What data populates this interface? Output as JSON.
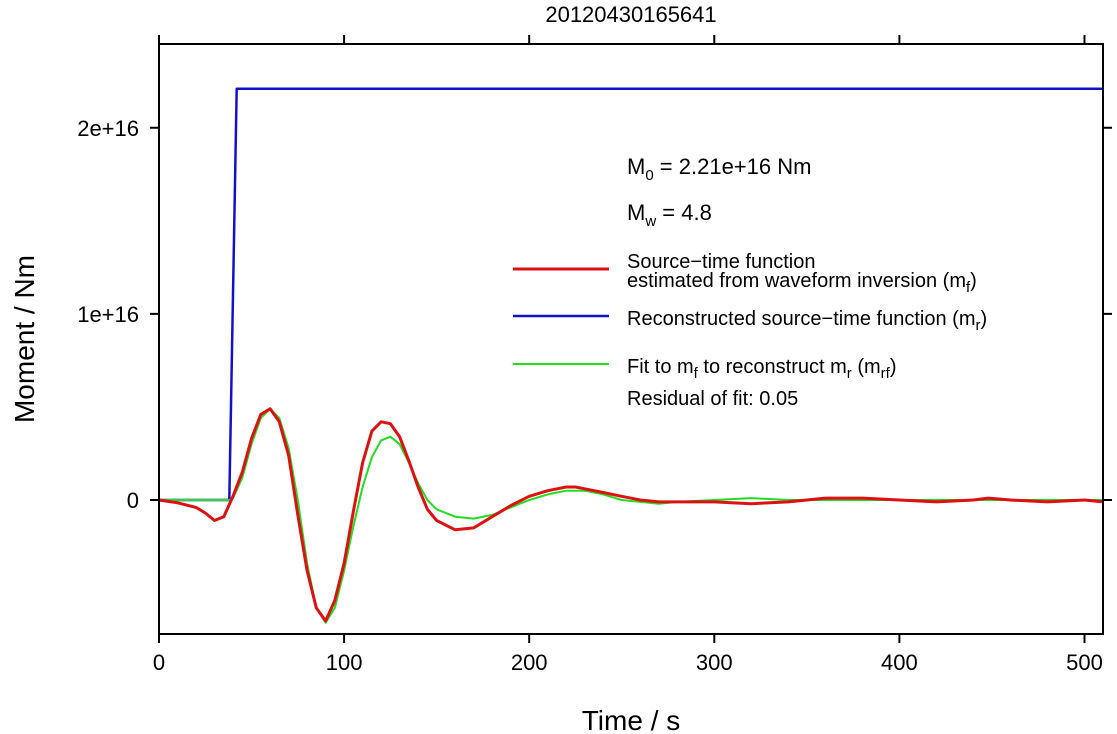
{
  "chart_data": {
    "type": "line",
    "title": "20120430165641",
    "xlabel": "Time / s",
    "ylabel": "Moment / Nm",
    "xlim": [
      0,
      510
    ],
    "ylim": [
      -7200000000000000.0,
      2.45e+16
    ],
    "x_ticks": [
      0,
      100,
      200,
      300,
      400,
      500
    ],
    "x_tick_labels": [
      "0",
      "100",
      "200",
      "300",
      "400",
      "500"
    ],
    "y_ticks": [
      0,
      1e+16,
      2e+16
    ],
    "y_tick_labels": [
      "0",
      "1e+16",
      "2e+16"
    ],
    "grid": false,
    "legend_position": "right",
    "annotations": {
      "m0": {
        "sym": "M",
        "sub": "0",
        "text": " = 2.21e+16 Nm"
      },
      "mw": {
        "sym": "M",
        "sub": "w",
        "text": " = 4.8"
      },
      "residual": "Residual of fit: 0.05"
    },
    "series": [
      {
        "name_line1": "Source−time function",
        "name_line2": "estimated from waveform inversion (m",
        "name_sub": "f",
        "name_end": ")",
        "color": "#dd1111",
        "width": 3,
        "x": [
          0,
          10,
          20,
          25,
          30,
          35,
          40,
          45,
          50,
          55,
          60,
          65,
          70,
          75,
          80,
          85,
          90,
          95,
          100,
          105,
          110,
          115,
          120,
          125,
          130,
          135,
          140,
          145,
          150,
          160,
          170,
          180,
          190,
          200,
          210,
          220,
          225,
          230,
          240,
          250,
          260,
          270,
          280,
          300,
          320,
          340,
          360,
          380,
          400,
          420,
          440,
          448,
          460,
          480,
          500,
          510
        ],
        "y": [
          0,
          -150000000000000.0,
          -400000000000000.0,
          -700000000000000.0,
          -1100000000000000.0,
          -900000000000000.0,
          200000000000000.0,
          1500000000000000.0,
          3300000000000000.0,
          4600000000000000.0,
          4900000000000000.0,
          4200000000000000.0,
          2400000000000000.0,
          -800000000000000.0,
          -3800000000000000.0,
          -5800000000000000.0,
          -6500000000000000.0,
          -5400000000000000.0,
          -3400000000000000.0,
          -600000000000000.0,
          2000000000000000.0,
          3700000000000000.0,
          4200000000000000.0,
          4100000000000000.0,
          3400000000000000.0,
          2100000000000000.0,
          700000000000000.0,
          -500000000000000.0,
          -1100000000000000.0,
          -1600000000000000.0,
          -1500000000000000.0,
          -900000000000000.0,
          -300000000000000.0,
          200000000000000.0,
          500000000000000.0,
          700000000000000.0,
          700000000000000.0,
          600000000000000.0,
          400000000000000.0,
          200000000000000.0,
          0,
          -100000000000000.0,
          -100000000000000.0,
          -100000000000000.0,
          -200000000000000.0,
          -100000000000000.0,
          100000000000000.0,
          100000000000000.0,
          0,
          -100000000000000.0,
          0,
          100000000000000.0,
          0,
          -100000000000000.0,
          0,
          -100000000000000.0
        ]
      },
      {
        "name": "Reconstructed source−time function (m",
        "name_sub": "r",
        "name_end": ")",
        "color": "#1111cc",
        "width": 2.5,
        "x": [
          0,
          38,
          42,
          510
        ],
        "y": [
          0,
          0,
          2.21e+16,
          2.21e+16
        ]
      },
      {
        "name": "Fit to m",
        "name_sub": "f",
        "name_mid": " to reconstruct m",
        "name_sub2": "r",
        "name_mid2": " (m",
        "name_sub3": "rf",
        "name_end": ")",
        "color": "#22dd22",
        "width": 2,
        "x": [
          0,
          38,
          40,
          45,
          50,
          55,
          60,
          65,
          70,
          75,
          80,
          85,
          90,
          95,
          100,
          105,
          110,
          115,
          120,
          125,
          130,
          135,
          140,
          145,
          150,
          160,
          170,
          180,
          190,
          200,
          210,
          220,
          230,
          240,
          250,
          260,
          270,
          280,
          300,
          320,
          340,
          360,
          380,
          400,
          420,
          440,
          460,
          480,
          500,
          510
        ],
        "y": [
          0,
          0,
          100000000000000.0,
          1200000000000000.0,
          3000000000000000.0,
          4400000000000000.0,
          4900000000000000.0,
          4400000000000000.0,
          2800000000000000.0,
          0,
          -3400000000000000.0,
          -5800000000000000.0,
          -6600000000000000.0,
          -5800000000000000.0,
          -3800000000000000.0,
          -1400000000000000.0,
          700000000000000.0,
          2300000000000000.0,
          3200000000000000.0,
          3400000000000000.0,
          3000000000000000.0,
          2000000000000000.0,
          900000000000000.0,
          0,
          -500000000000000.0,
          -900000000000000.0,
          -1000000000000000.0,
          -800000000000000.0,
          -400000000000000.0,
          0,
          300000000000000.0,
          500000000000000.0,
          500000000000000.0,
          300000000000000.0,
          0,
          -100000000000000.0,
          -200000000000000.0,
          -100000000000000.0,
          0,
          100000000000000.0,
          0,
          0,
          0,
          0,
          0,
          0,
          0,
          0,
          0,
          0
        ]
      }
    ]
  }
}
